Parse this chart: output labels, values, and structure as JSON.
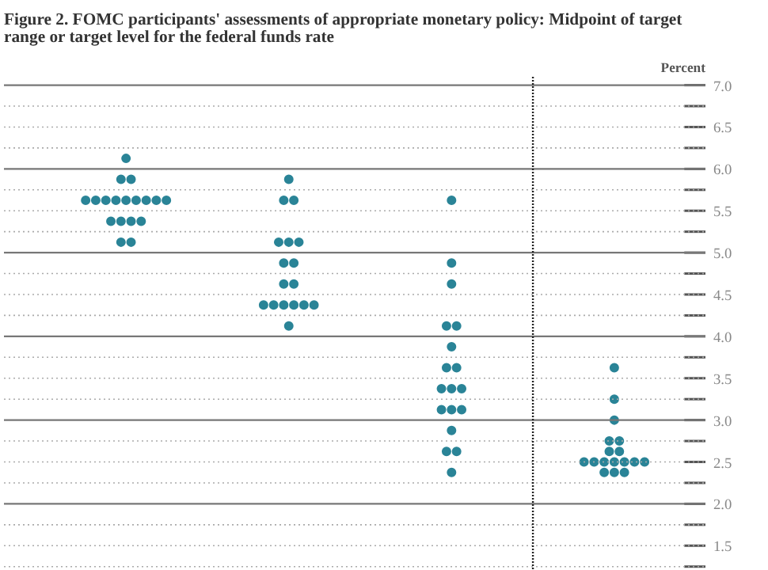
{
  "chart_data": {
    "type": "scatter",
    "title": "Figure 2.  FOMC participants' assessments of appropriate monetary policy: Midpoint of target range or target level for the federal funds rate",
    "ylabel": "Percent",
    "categories": [
      null,
      null,
      null,
      null
    ],
    "tick_labels": "y",
    "grid": "y",
    "marker": "circle",
    "ylim": [
      1.2,
      7.1
    ],
    "yticks": [
      {
        "value": 1.25,
        "label": null
      },
      {
        "value": 1.5,
        "label": "1.5"
      },
      {
        "value": 1.75,
        "label": null
      },
      {
        "value": 2.0,
        "label": "2.0"
      },
      {
        "value": 2.25,
        "label": null
      },
      {
        "value": 2.5,
        "label": "2.5"
      },
      {
        "value": 2.75,
        "label": null
      },
      {
        "value": 3.0,
        "label": "3.0"
      },
      {
        "value": 3.25,
        "label": null
      },
      {
        "value": 3.5,
        "label": "3.5"
      },
      {
        "value": 3.75,
        "label": null
      },
      {
        "value": 4.0,
        "label": "4.0"
      },
      {
        "value": 4.25,
        "label": null
      },
      {
        "value": 4.5,
        "label": "4.5"
      },
      {
        "value": 4.75,
        "label": null
      },
      {
        "value": 5.0,
        "label": "5.0"
      },
      {
        "value": 5.25,
        "label": null
      },
      {
        "value": 5.5,
        "label": "5.5"
      },
      {
        "value": 5.75,
        "label": null
      },
      {
        "value": 6.0,
        "label": "6.0"
      },
      {
        "value": 6.25,
        "label": null
      },
      {
        "value": 6.5,
        "label": "6.5"
      },
      {
        "value": 6.75,
        "label": null
      },
      {
        "value": 7.0,
        "label": "7.0"
      }
    ],
    "series": [
      {
        "color": "#2a8497",
        "values": [
          6.125,
          5.875,
          5.625,
          3.625
        ]
      },
      {
        "color": "#2a8497",
        "values": [
          5.875,
          5.625,
          4.875,
          3.25
        ]
      },
      {
        "color": "#2a8497",
        "values": [
          5.875,
          5.625,
          4.625,
          3.0
        ]
      },
      {
        "color": "#2a8497",
        "values": [
          5.625,
          5.125,
          4.125,
          2.75
        ]
      },
      {
        "color": "#2a8497",
        "values": [
          5.625,
          5.125,
          4.125,
          2.75
        ]
      },
      {
        "color": "#2a8497",
        "values": [
          5.625,
          5.125,
          3.875,
          2.625
        ]
      },
      {
        "color": "#2a8497",
        "values": [
          5.625,
          4.875,
          3.625,
          2.625
        ]
      },
      {
        "color": "#2a8497",
        "values": [
          5.625,
          4.875,
          3.625,
          2.5
        ]
      },
      {
        "color": "#2a8497",
        "values": [
          5.625,
          4.625,
          3.375,
          2.5
        ]
      },
      {
        "color": "#2a8497",
        "values": [
          5.625,
          4.625,
          3.375,
          2.5
        ]
      },
      {
        "color": "#2a8497",
        "values": [
          5.625,
          4.375,
          3.375,
          2.5
        ]
      },
      {
        "color": "#2a8497",
        "values": [
          5.625,
          4.375,
          3.125,
          2.5
        ]
      },
      {
        "color": "#2a8497",
        "values": [
          5.375,
          4.375,
          3.125,
          2.5
        ]
      },
      {
        "color": "#2a8497",
        "values": [
          5.375,
          4.375,
          3.125,
          2.5
        ]
      },
      {
        "color": "#2a8497",
        "values": [
          5.375,
          4.375,
          2.875,
          2.375
        ]
      },
      {
        "color": "#2a8497",
        "values": [
          5.375,
          4.375,
          2.625,
          2.375
        ]
      },
      {
        "color": "#2a8497",
        "values": [
          5.125,
          4.125,
          2.625,
          2.375
        ]
      },
      {
        "color": "#2a8497",
        "values": [
          5.125,
          null,
          2.375,
          null
        ]
      }
    ]
  }
}
